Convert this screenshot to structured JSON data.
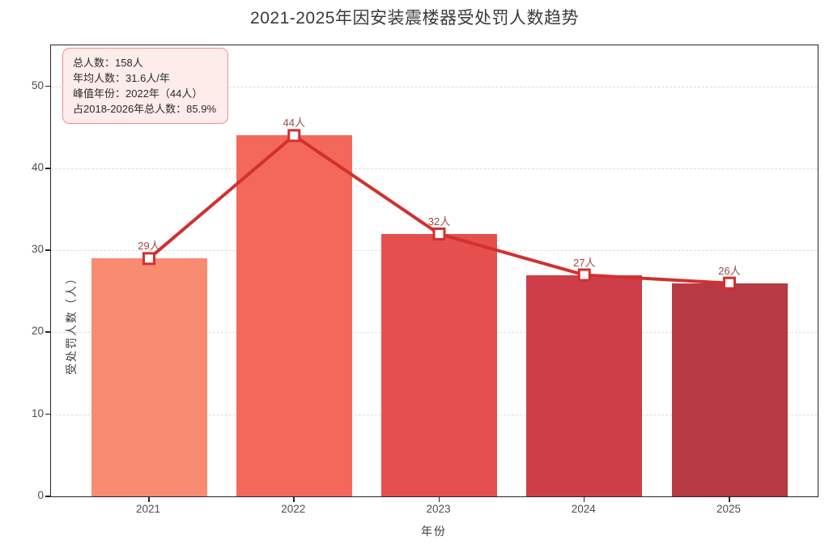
{
  "title": "2021-2025年因安装震楼器受处罚人数趋势",
  "info_box": {
    "lines": [
      "总人数：158人",
      "年均人数：31.6人/年",
      "峰值年份：2022年（44人）",
      "占2018-2026年总人数：85.9%"
    ]
  },
  "chart_data": {
    "type": "bar",
    "overlay": "line",
    "title": "2021-2025年因安装震楼器受处罚人数趋势",
    "categories": [
      "2021",
      "2022",
      "2023",
      "2024",
      "2025"
    ],
    "values": [
      29,
      44,
      32,
      27,
      26
    ],
    "value_labels": [
      "29人",
      "44人",
      "32人",
      "27人",
      "26人"
    ],
    "bar_colors": [
      "#f98b70",
      "#f4685c",
      "#e5504e",
      "#cd3e48",
      "#b63a43"
    ],
    "line_color": "#d2302f",
    "marker": {
      "shape": "square",
      "fill": "#ffffff",
      "stroke": "#d2302f"
    },
    "xlabel": "年份",
    "ylabel": "受处罚人数（人）",
    "yticks": [
      0,
      10,
      20,
      30,
      40,
      50
    ],
    "ylim": [
      0,
      55
    ],
    "grid": {
      "axis": "y",
      "style": "dashed",
      "color": "#dcdcdc"
    },
    "legend": null,
    "label_color": "#9c4a44",
    "annotation_box_bg": "#fdecea",
    "annotation_box_border": "#ef8e8e"
  }
}
